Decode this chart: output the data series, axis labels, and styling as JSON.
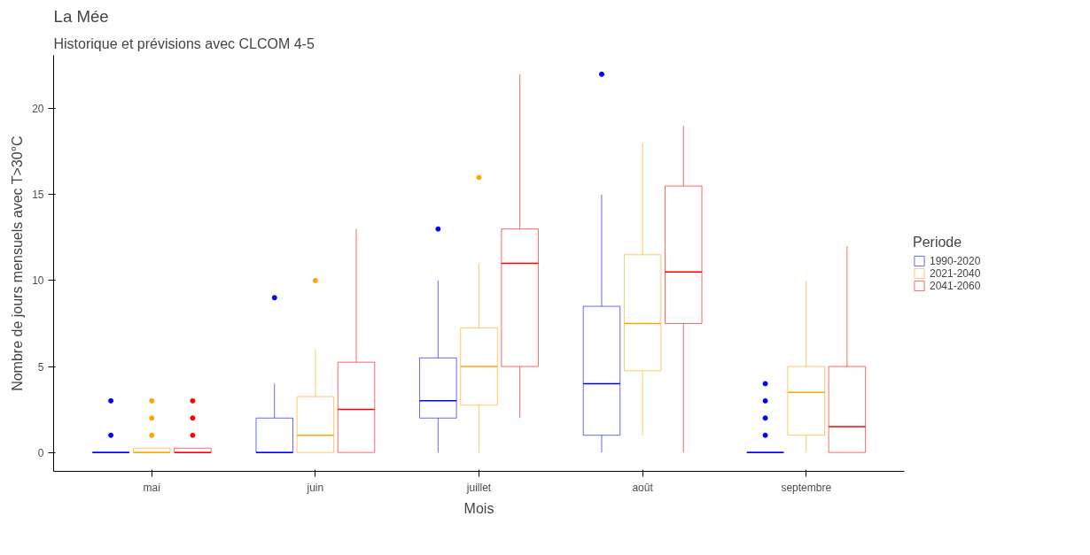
{
  "chart_data": {
    "type": "box",
    "title": "La Mée",
    "subtitle": "Historique et prévisions avec CLCOM 4-5",
    "xlabel": "Mois",
    "ylabel": "Nombre de jours mensuels avec T>30°C",
    "legend_title": "Periode",
    "legend": "right",
    "grid": false,
    "categories": [
      "mai",
      "juin",
      "juillet",
      "août",
      "septembre"
    ],
    "ylim": [
      -1.1,
      23.1
    ],
    "yticks": [
      0,
      5,
      10,
      15,
      20
    ],
    "series": [
      {
        "name": "1990-2020",
        "color": "#0000ff",
        "boxes": [
          {
            "low": 0,
            "q1": 0,
            "median": 0,
            "q3": 0,
            "high": 0,
            "outliers": [
              1,
              3
            ]
          },
          {
            "low": 0,
            "q1": 0,
            "median": 0,
            "q3": 2,
            "high": 4,
            "outliers": [
              9
            ]
          },
          {
            "low": 0,
            "q1": 2,
            "median": 3,
            "q3": 5.5,
            "high": 10,
            "outliers": [
              13
            ]
          },
          {
            "low": 0,
            "q1": 1,
            "median": 4,
            "q3": 8.5,
            "high": 15,
            "outliers": [
              22
            ]
          },
          {
            "low": 0,
            "q1": 0,
            "median": 0,
            "q3": 0,
            "high": 0,
            "outliers": [
              1,
              2,
              3,
              4
            ]
          }
        ]
      },
      {
        "name": "2021-2040",
        "color": "#ffa500",
        "boxes": [
          {
            "low": 0,
            "q1": 0,
            "median": 0,
            "q3": 0.25,
            "high": 0.25,
            "outliers": [
              1,
              2,
              3
            ]
          },
          {
            "low": 0,
            "q1": 0,
            "median": 1,
            "q3": 3.25,
            "high": 6,
            "outliers": [
              10
            ]
          },
          {
            "low": 0,
            "q1": 2.75,
            "median": 5,
            "q3": 7.25,
            "high": 11,
            "outliers": [
              16
            ]
          },
          {
            "low": 1,
            "q1": 4.75,
            "median": 7.5,
            "q3": 11.5,
            "high": 18
          },
          {
            "low": 0,
            "q1": 1,
            "median": 3.5,
            "q3": 5,
            "high": 10
          }
        ]
      },
      {
        "name": "2041-2060",
        "color": "#ff0000",
        "boxes": [
          {
            "low": 0,
            "q1": 0,
            "median": 0,
            "q3": 0.25,
            "high": 0.25,
            "outliers": [
              1,
              2,
              3
            ]
          },
          {
            "low": 0,
            "q1": 0,
            "median": 2.5,
            "q3": 5.25,
            "high": 13
          },
          {
            "low": 2,
            "q1": 5,
            "median": 11,
            "q3": 13,
            "high": 22
          },
          {
            "low": 0,
            "q1": 7.5,
            "median": 10.5,
            "q3": 15.5,
            "high": 19
          },
          {
            "low": 0,
            "q1": 0,
            "median": 1.5,
            "q3": 5,
            "high": 12
          }
        ]
      }
    ]
  }
}
